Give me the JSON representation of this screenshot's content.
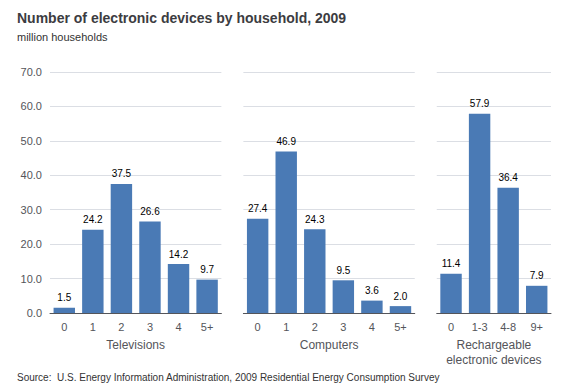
{
  "chart_data": [
    {
      "type": "bar",
      "title": "Number of electronic devices by household, 2009",
      "subtitle": "million households",
      "annotations": [
        "Source:  U.S. Energy Information Administration, 2009 Residential Energy Consumption Survey"
      ],
      "xlabel": "Televisions",
      "categories": [
        "0",
        "1",
        "2",
        "3",
        "4",
        "5+"
      ],
      "values": [
        1.5,
        24.2,
        37.5,
        26.6,
        14.2,
        9.7
      ],
      "value_labels": [
        "1.5",
        "24.2",
        "37.5",
        "26.6",
        "14.2",
        "9.7"
      ],
      "color": "#4a7ab5",
      "data_labels": true,
      "grid": true,
      "ylim": [
        0,
        70
      ],
      "yticks": [
        {
          "value": 0,
          "label": "0.0"
        },
        {
          "value": 10,
          "label": "10.0"
        },
        {
          "value": 20,
          "label": "20.0"
        },
        {
          "value": 30,
          "label": "30.0"
        },
        {
          "value": 40,
          "label": "40.0"
        },
        {
          "value": 50,
          "label": "50.0"
        },
        {
          "value": 60,
          "label": "60.0"
        },
        {
          "value": 70,
          "label": "70.0"
        }
      ]
    },
    {
      "type": "bar",
      "xlabel": "Computers",
      "categories": [
        "0",
        "1",
        "2",
        "3",
        "4",
        "5+"
      ],
      "values": [
        27.4,
        46.9,
        24.3,
        9.5,
        3.6,
        2.0
      ],
      "value_labels": [
        "27.4",
        "46.9",
        "24.3",
        "9.5",
        "3.6",
        "2.0"
      ],
      "color": "#4a7ab5",
      "data_labels": true,
      "grid": true,
      "tick_labels": "x",
      "ylim": [
        0,
        70
      ],
      "yticks": [
        {
          "value": 0,
          "label": "0.0"
        },
        {
          "value": 10,
          "label": "10.0"
        },
        {
          "value": 20,
          "label": "20.0"
        },
        {
          "value": 30,
          "label": "30.0"
        },
        {
          "value": 40,
          "label": "40.0"
        },
        {
          "value": 50,
          "label": "50.0"
        },
        {
          "value": 60,
          "label": "60.0"
        },
        {
          "value": 70,
          "label": "70.0"
        }
      ]
    },
    {
      "type": "bar",
      "xlabel": "Rechargeable\nelectronic devices",
      "categories": [
        "0",
        "1-3",
        "4-8",
        "9+"
      ],
      "values": [
        11.4,
        57.9,
        36.4,
        7.9
      ],
      "value_labels": [
        "11.4",
        "57.9",
        "36.4",
        "7.9"
      ],
      "color": "#4a7ab5",
      "data_labels": true,
      "grid": true,
      "tick_labels": "x",
      "ylim": [
        0,
        70
      ],
      "yticks": [
        {
          "value": 0,
          "label": "0.0"
        },
        {
          "value": 10,
          "label": "10.0"
        },
        {
          "value": 20,
          "label": "20.0"
        },
        {
          "value": 30,
          "label": "30.0"
        },
        {
          "value": 40,
          "label": "40.0"
        },
        {
          "value": 50,
          "label": "50.0"
        },
        {
          "value": 60,
          "label": "60.0"
        },
        {
          "value": 70,
          "label": "70.0"
        }
      ]
    }
  ]
}
